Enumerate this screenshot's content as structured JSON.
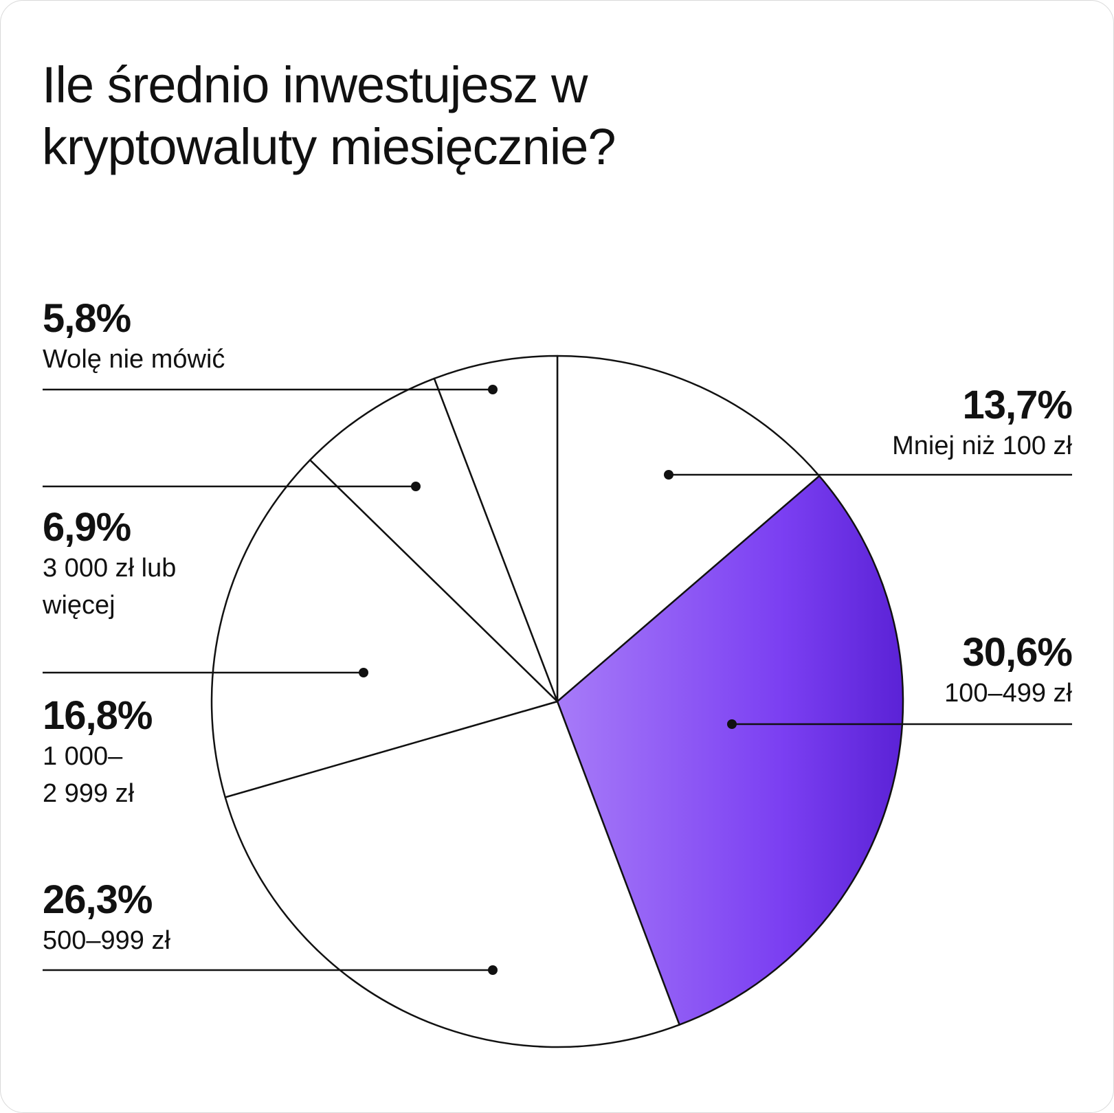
{
  "chart_data": {
    "type": "pie",
    "title": "Ile średnio inwestujesz w kryptowaluty miesięcznie?",
    "slices": [
      {
        "percent_label": "13,7%",
        "label_lines": [
          "Mniej niż 100 zł"
        ],
        "value": 13.7,
        "fill": "#ffffff"
      },
      {
        "percent_label": "30,6%",
        "label_lines": [
          "100–499 zł"
        ],
        "value": 30.6,
        "fill": "gradient",
        "highlighted": true
      },
      {
        "percent_label": "26,3%",
        "label_lines": [
          "500–999 zł"
        ],
        "value": 26.3,
        "fill": "#ffffff"
      },
      {
        "percent_label": "16,8%",
        "label_lines": [
          "1 000–",
          "2 999 zł"
        ],
        "value": 16.8,
        "fill": "#ffffff"
      },
      {
        "percent_label": "6,9%",
        "label_lines": [
          "3 000 zł lub",
          "więcej"
        ],
        "value": 6.9,
        "fill": "#ffffff"
      },
      {
        "percent_label": "5,8%",
        "label_lines": [
          "Wolę nie mówić"
        ],
        "value": 5.8,
        "fill": "#ffffff"
      }
    ],
    "start": "12 o'clock",
    "direction": "clockwise"
  },
  "colors": {
    "background": "#ffffff",
    "stroke": "#111111",
    "text": "#111111",
    "highlight_gradient": [
      "#a77bf8",
      "#7b3ff2",
      "#5b22d6"
    ]
  }
}
